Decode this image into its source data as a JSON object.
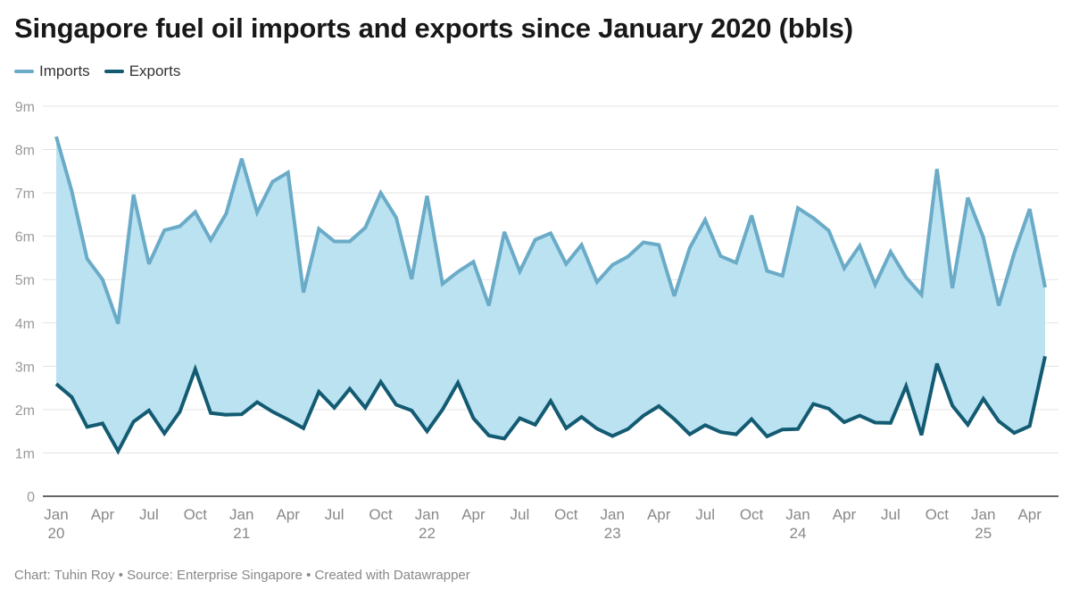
{
  "chart_data": {
    "type": "area",
    "title": "Singapore fuel oil imports and exports since January 2020 (bbls)",
    "footer": "Chart: Tuhin Roy • Source: Enterprise Singapore • Created with Datawrapper",
    "ylim": [
      0,
      9000000
    ],
    "yticks": [
      0,
      1000000,
      2000000,
      3000000,
      4000000,
      5000000,
      6000000,
      7000000,
      8000000,
      9000000
    ],
    "ytick_labels": [
      "0",
      "1m",
      "2m",
      "3m",
      "4m",
      "5m",
      "6m",
      "7m",
      "8m",
      "9m"
    ],
    "grid": true,
    "legend_position": "top-left",
    "x_start": "2020-01",
    "x_end": "2025-05",
    "x": [
      "2020-01",
      "2020-02",
      "2020-03",
      "2020-04",
      "2020-05",
      "2020-06",
      "2020-07",
      "2020-08",
      "2020-09",
      "2020-10",
      "2020-11",
      "2020-12",
      "2021-01",
      "2021-02",
      "2021-03",
      "2021-04",
      "2021-05",
      "2021-06",
      "2021-07",
      "2021-08",
      "2021-09",
      "2021-10",
      "2021-11",
      "2021-12",
      "2022-01",
      "2022-02",
      "2022-03",
      "2022-04",
      "2022-05",
      "2022-06",
      "2022-07",
      "2022-08",
      "2022-09",
      "2022-10",
      "2022-11",
      "2022-12",
      "2023-01",
      "2023-02",
      "2023-03",
      "2023-04",
      "2023-05",
      "2023-06",
      "2023-07",
      "2023-08",
      "2023-09",
      "2023-10",
      "2023-11",
      "2023-12",
      "2024-01",
      "2024-02",
      "2024-03",
      "2024-04",
      "2024-05",
      "2024-06",
      "2024-07",
      "2024-08",
      "2024-09",
      "2024-10",
      "2024-11",
      "2024-12",
      "2025-01",
      "2025-02",
      "2025-03",
      "2025-04",
      "2025-05"
    ],
    "xticks": [
      {
        "month": "2020-01",
        "label": "Jan",
        "sub": "20"
      },
      {
        "month": "2020-04",
        "label": "Apr",
        "sub": ""
      },
      {
        "month": "2020-07",
        "label": "Jul",
        "sub": ""
      },
      {
        "month": "2020-10",
        "label": "Oct",
        "sub": ""
      },
      {
        "month": "2021-01",
        "label": "Jan",
        "sub": "21"
      },
      {
        "month": "2021-04",
        "label": "Apr",
        "sub": ""
      },
      {
        "month": "2021-07",
        "label": "Jul",
        "sub": ""
      },
      {
        "month": "2021-10",
        "label": "Oct",
        "sub": ""
      },
      {
        "month": "2022-01",
        "label": "Jan",
        "sub": "22"
      },
      {
        "month": "2022-04",
        "label": "Apr",
        "sub": ""
      },
      {
        "month": "2022-07",
        "label": "Jul",
        "sub": ""
      },
      {
        "month": "2022-10",
        "label": "Oct",
        "sub": ""
      },
      {
        "month": "2023-01",
        "label": "Jan",
        "sub": "23"
      },
      {
        "month": "2023-04",
        "label": "Apr",
        "sub": ""
      },
      {
        "month": "2023-07",
        "label": "Jul",
        "sub": ""
      },
      {
        "month": "2023-10",
        "label": "Oct",
        "sub": ""
      },
      {
        "month": "2024-01",
        "label": "Jan",
        "sub": "24"
      },
      {
        "month": "2024-04",
        "label": "Apr",
        "sub": ""
      },
      {
        "month": "2024-07",
        "label": "Jul",
        "sub": ""
      },
      {
        "month": "2024-10",
        "label": "Oct",
        "sub": ""
      },
      {
        "month": "2025-01",
        "label": "Jan",
        "sub": "25"
      },
      {
        "month": "2025-04",
        "label": "Apr",
        "sub": ""
      }
    ],
    "series": [
      {
        "name": "Imports",
        "color": "#6aabc8",
        "values": [
          8300000,
          7050000,
          5480000,
          5000000,
          3980000,
          6960000,
          5360000,
          6140000,
          6230000,
          6560000,
          5910000,
          6520000,
          7790000,
          6550000,
          7260000,
          7470000,
          4700000,
          6170000,
          5880000,
          5880000,
          6200000,
          7000000,
          6430000,
          5010000,
          6930000,
          4900000,
          5180000,
          5410000,
          4400000,
          6100000,
          5190000,
          5920000,
          6070000,
          5360000,
          5800000,
          4940000,
          5340000,
          5530000,
          5860000,
          5800000,
          4620000,
          5730000,
          6380000,
          5540000,
          5390000,
          6480000,
          5200000,
          5090000,
          6650000,
          6420000,
          6130000,
          5260000,
          5780000,
          4880000,
          5640000,
          5050000,
          4650000,
          7550000,
          4800000,
          6890000,
          5970000,
          4400000,
          5610000,
          6630000,
          4820000
        ]
      },
      {
        "name": "Exports",
        "color": "#135b72",
        "values": [
          2590000,
          2290000,
          1600000,
          1680000,
          1040000,
          1720000,
          1980000,
          1450000,
          1950000,
          2930000,
          1920000,
          1880000,
          1890000,
          2170000,
          1950000,
          1770000,
          1570000,
          2410000,
          2040000,
          2480000,
          2040000,
          2640000,
          2110000,
          1980000,
          1500000,
          2000000,
          2620000,
          1800000,
          1400000,
          1330000,
          1800000,
          1650000,
          2200000,
          1570000,
          1830000,
          1560000,
          1390000,
          1550000,
          1860000,
          2080000,
          1780000,
          1430000,
          1640000,
          1480000,
          1430000,
          1780000,
          1380000,
          1540000,
          1550000,
          2130000,
          2020000,
          1710000,
          1860000,
          1700000,
          1690000,
          2540000,
          1410000,
          3060000,
          2090000,
          1650000,
          2250000,
          1730000,
          1460000,
          1620000,
          3230000
        ]
      }
    ],
    "fill_between_color": "#bae2f1"
  }
}
